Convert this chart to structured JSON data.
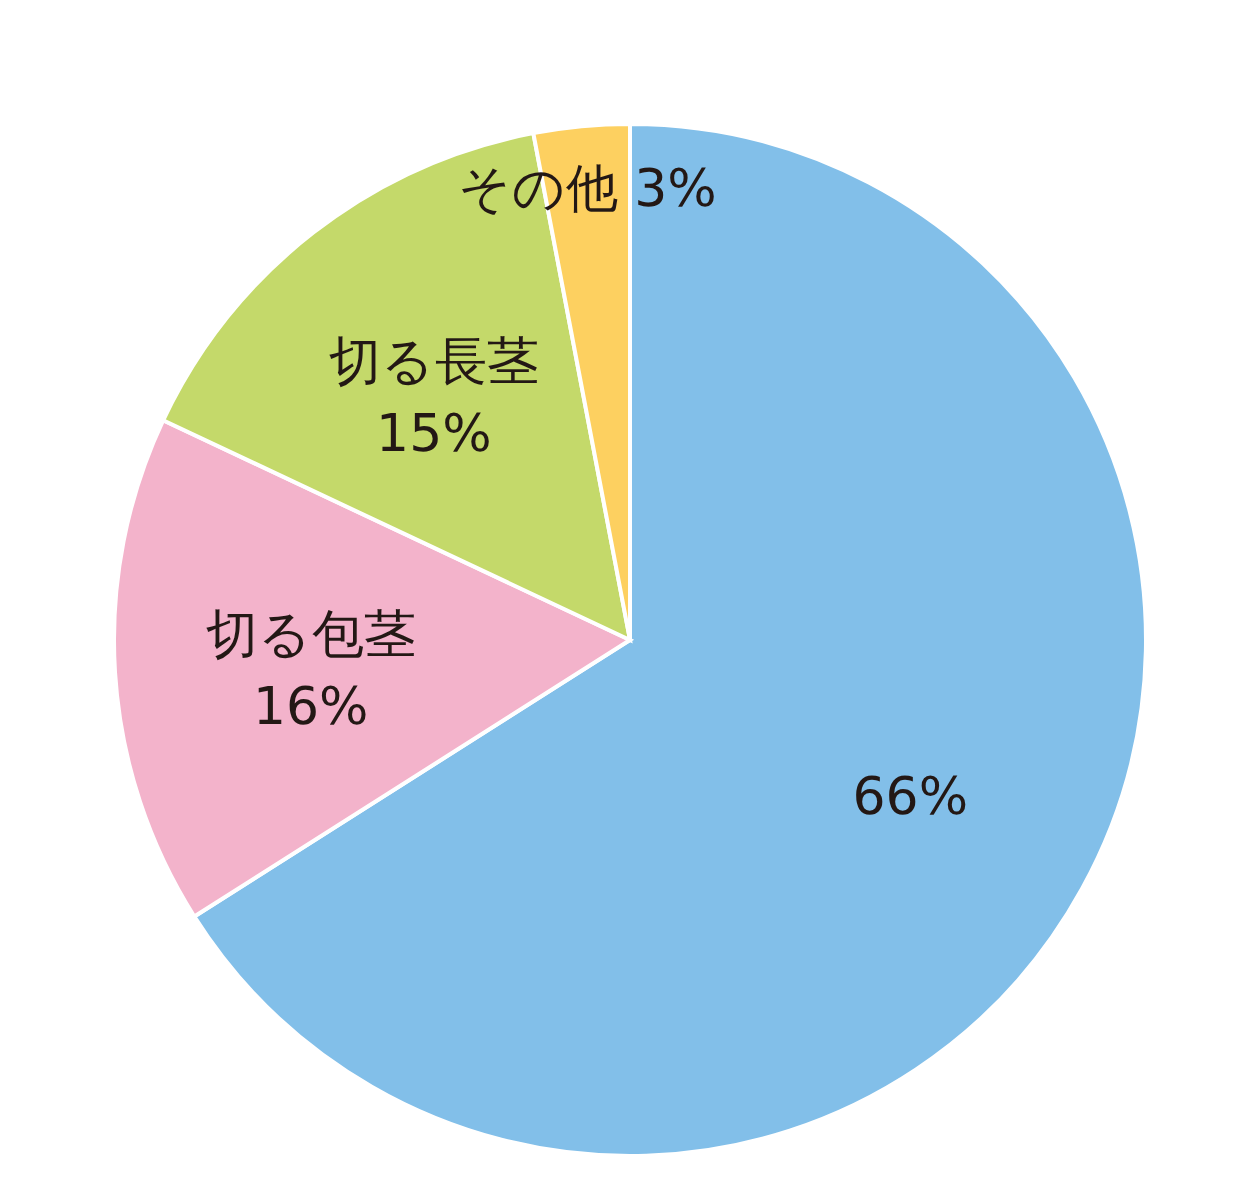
{
  "chart_data": {
    "type": "pie",
    "categories": [
      null,
      "切る包茎",
      "切る長茎",
      "その他"
    ],
    "values": [
      66,
      16,
      15,
      3
    ],
    "colors": [
      "#82bfe9",
      "#f3b3cb",
      "#c4d96a",
      "#fdd060"
    ],
    "value_labels": [
      "66%",
      "16%",
      "15%",
      "3%"
    ]
  }
}
